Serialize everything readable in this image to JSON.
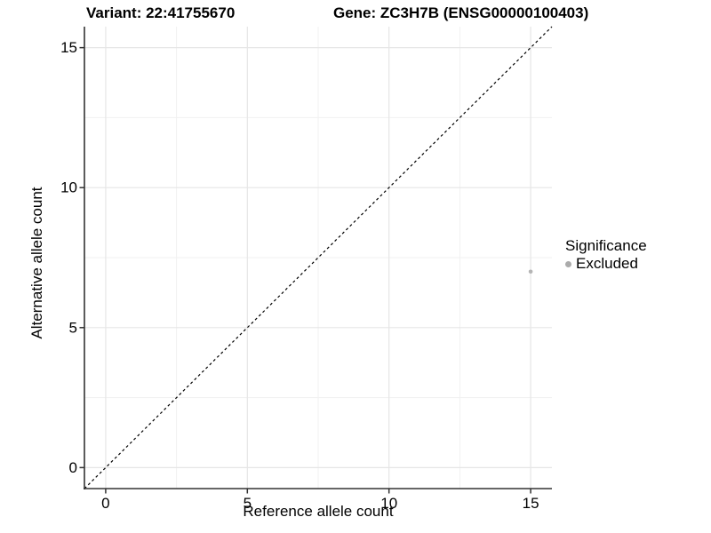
{
  "titles": {
    "left": "Variant: 22:41755670",
    "right": "Gene: ZC3H7B (ENSG00000100403)"
  },
  "chart_data": {
    "type": "scatter",
    "xlabel": "Reference allele count",
    "ylabel": "Alternative allele count",
    "xlim": [
      -0.75,
      15.75
    ],
    "ylim": [
      -0.75,
      15.75
    ],
    "x_ticks": [
      0,
      5,
      10,
      15
    ],
    "y_ticks": [
      0,
      5,
      10,
      15
    ],
    "x_minor_ticks": [
      2.5,
      7.5,
      12.5
    ],
    "y_minor_ticks": [
      2.5,
      7.5,
      12.5
    ],
    "grid": true,
    "points": [
      {
        "x": 15,
        "y": 7,
        "significance": "Excluded"
      }
    ],
    "reference_line": {
      "kind": "identity",
      "slope": 1,
      "intercept": 0,
      "style": "dashed",
      "color": "#000000"
    },
    "legend": {
      "title": "Significance",
      "position": "right",
      "items": [
        {
          "label": "Excluded",
          "color": "#ababab"
        }
      ]
    },
    "colors": {
      "point": "#b5b5b5",
      "grid_major": "#e6e6e6",
      "grid_minor": "#f1f1f1",
      "axis": "#333333",
      "tick": "#333333",
      "text": "#000000"
    }
  }
}
